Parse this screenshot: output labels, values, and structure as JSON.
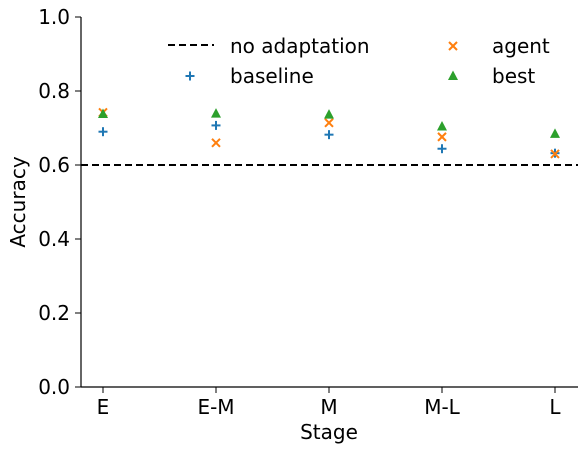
{
  "chart_data": {
    "type": "scatter",
    "title": "",
    "xlabel": "Stage",
    "ylabel": "Accuracy",
    "categories": [
      "E",
      "E-M",
      "M",
      "M-L",
      "L"
    ],
    "ylim": [
      0.0,
      1.0
    ],
    "yticks": [
      "0.0",
      "0.2",
      "0.4",
      "0.6",
      "0.8",
      "1.0"
    ],
    "grid": false,
    "legend_position": "top",
    "reference_line": {
      "name": "no adaptation",
      "value": 0.6,
      "style": "dashed",
      "color": "#000000"
    },
    "series": [
      {
        "name": "baseline",
        "marker": "plus",
        "color": "#1f77b4",
        "values": [
          0.69,
          0.707,
          0.682,
          0.644,
          0.632
        ]
      },
      {
        "name": "agent",
        "marker": "x",
        "color": "#ff7f0e",
        "values": [
          0.742,
          0.66,
          0.714,
          0.676,
          0.63
        ]
      },
      {
        "name": "best",
        "marker": "triangle",
        "color": "#2ca02c",
        "values": [
          0.738,
          0.739,
          0.736,
          0.704,
          0.684
        ]
      }
    ]
  }
}
